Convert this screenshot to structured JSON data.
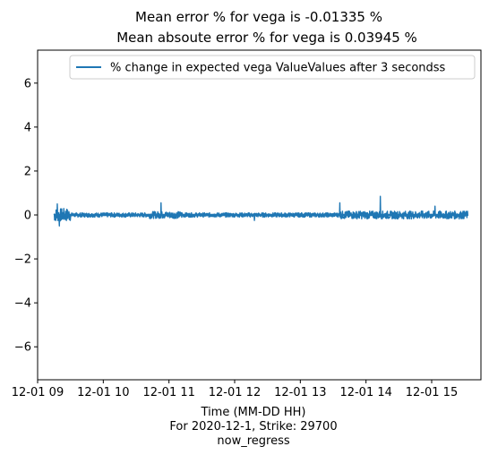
{
  "chart_data": {
    "type": "line",
    "title_lines": [
      "Mean error % for vega is -0.01335 %",
      "Mean absoute error % for vega is 0.03945 %"
    ],
    "xlabel_lines": [
      "Time (MM-DD HH)",
      "For 2020-12-1, Strike: 29700",
      "now_regress"
    ],
    "ylabel": "",
    "x_tick_labels": [
      "12-01 09",
      "12-01 10",
      "12-01 11",
      "12-01 12",
      "12-01 13",
      "12-01 14",
      "12-01 15"
    ],
    "x_tick_hours": [
      9,
      10,
      11,
      12,
      13,
      14,
      15
    ],
    "xlim_hours": [
      9.0,
      15.75
    ],
    "y_ticks": [
      -6,
      -4,
      -2,
      0,
      2,
      4,
      6
    ],
    "y_tick_labels": [
      "−6",
      "−4",
      "−2",
      "0",
      "2",
      "4",
      "6"
    ],
    "ylim": [
      -7.5,
      7.5
    ],
    "series": [
      {
        "name": "% change in expected vega ValueValues after 3 secondss",
        "color": "#1f77b4",
        "x_start_hour": 9.25,
        "x_end_hour": 15.55,
        "baseline": 0.0,
        "typical_amplitude": 0.05,
        "notable_points": [
          {
            "hour": 9.3,
            "value": 0.5
          },
          {
            "hour": 9.33,
            "value": -0.5
          },
          {
            "hour": 10.88,
            "value": 0.55
          },
          {
            "hour": 12.3,
            "value": -0.25
          },
          {
            "hour": 13.6,
            "value": 0.55
          },
          {
            "hour": 14.22,
            "value": 0.85
          },
          {
            "hour": 15.05,
            "value": 0.4
          }
        ]
      }
    ],
    "legend_position": "top-right",
    "grid": false
  }
}
